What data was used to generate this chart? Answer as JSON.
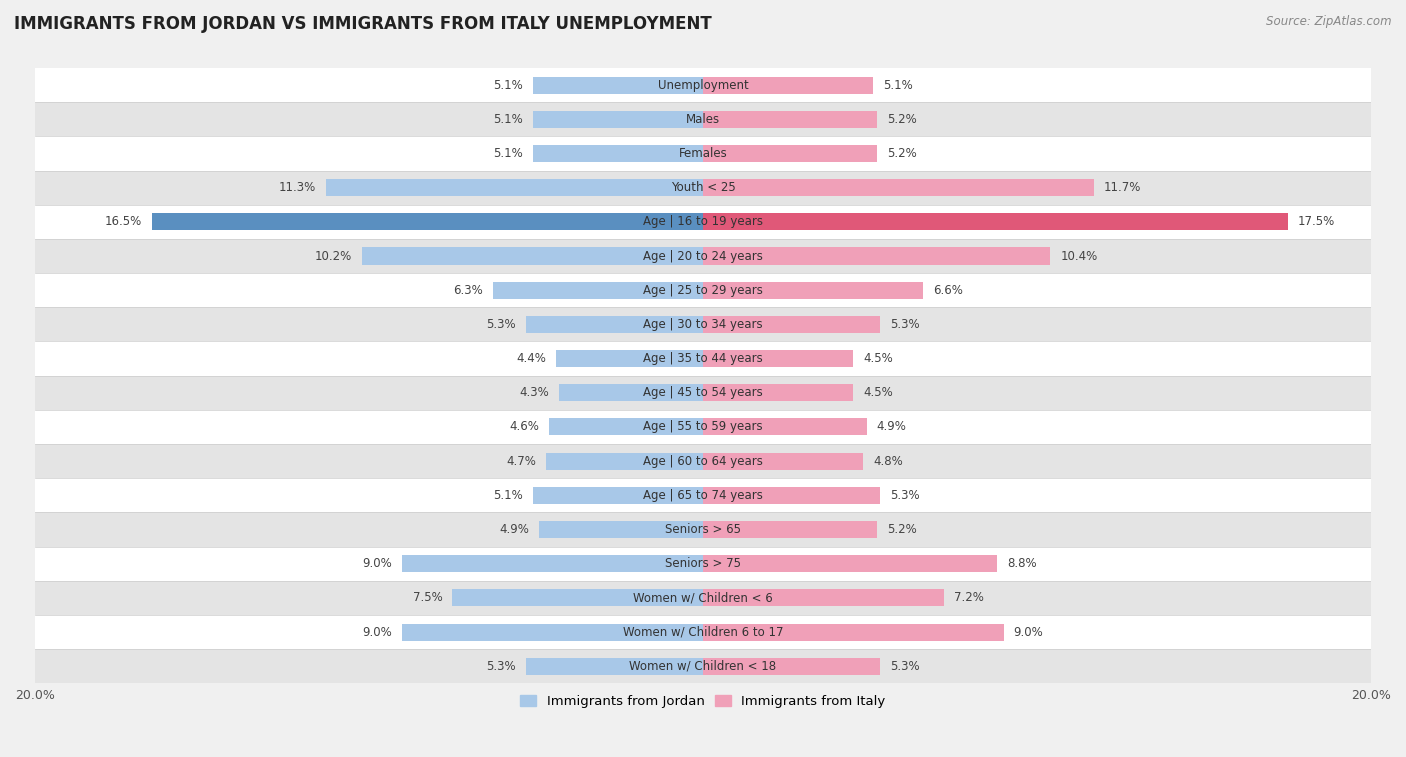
{
  "title": "IMMIGRANTS FROM JORDAN VS IMMIGRANTS FROM ITALY UNEMPLOYMENT",
  "source": "Source: ZipAtlas.com",
  "categories": [
    "Unemployment",
    "Males",
    "Females",
    "Youth < 25",
    "Age | 16 to 19 years",
    "Age | 20 to 24 years",
    "Age | 25 to 29 years",
    "Age | 30 to 34 years",
    "Age | 35 to 44 years",
    "Age | 45 to 54 years",
    "Age | 55 to 59 years",
    "Age | 60 to 64 years",
    "Age | 65 to 74 years",
    "Seniors > 65",
    "Seniors > 75",
    "Women w/ Children < 6",
    "Women w/ Children 6 to 17",
    "Women w/ Children < 18"
  ],
  "jordan_values": [
    5.1,
    5.1,
    5.1,
    11.3,
    16.5,
    10.2,
    6.3,
    5.3,
    4.4,
    4.3,
    4.6,
    4.7,
    5.1,
    4.9,
    9.0,
    7.5,
    9.0,
    5.3
  ],
  "italy_values": [
    5.1,
    5.2,
    5.2,
    11.7,
    17.5,
    10.4,
    6.6,
    5.3,
    4.5,
    4.5,
    4.9,
    4.8,
    5.3,
    5.2,
    8.8,
    7.2,
    9.0,
    5.3
  ],
  "jordan_color": "#a8c8e8",
  "italy_color": "#f0a0b8",
  "jordan_highlight_color": "#5a8fc0",
  "italy_highlight_color": "#e05878",
  "background_color": "#f0f0f0",
  "row_color_light": "#ffffff",
  "row_color_dark": "#e4e4e4",
  "xlim": 20.0,
  "legend_jordan": "Immigrants from Jordan",
  "legend_italy": "Immigrants from Italy",
  "highlight_rows": [
    4
  ]
}
